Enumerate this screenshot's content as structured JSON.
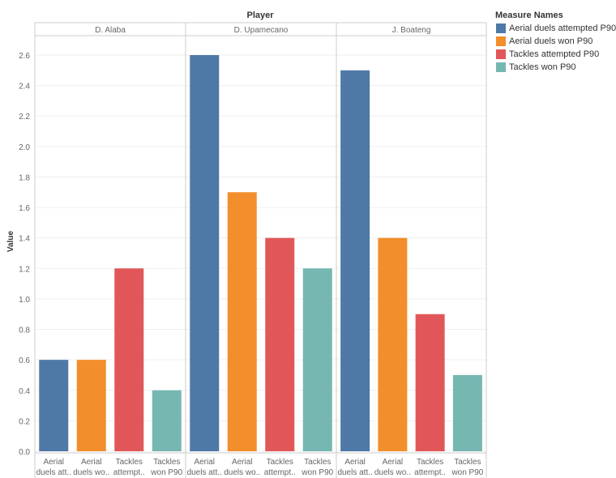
{
  "chart_data": {
    "type": "bar",
    "column_header": "Player",
    "ylabel": "Value",
    "ylim": [
      0,
      2.8
    ],
    "y_ticks": [
      "0.0",
      "0.2",
      "0.4",
      "0.6",
      "0.8",
      "1.0",
      "1.2",
      "1.4",
      "1.6",
      "1.8",
      "2.0",
      "2.2",
      "2.4",
      "2.6"
    ],
    "legend_title": "Measure Names",
    "legend_position": "top-right",
    "measures": [
      {
        "name": "Aerial duels attempted P90",
        "short_label": [
          "Aerial",
          "duels att.."
        ],
        "color": "#4e79a7"
      },
      {
        "name": "Aerial duels won P90",
        "short_label": [
          "Aerial",
          "duels wo.."
        ],
        "color": "#f28e2b"
      },
      {
        "name": "Tackles attempted P90",
        "short_label": [
          "Tackles",
          "attempt.."
        ],
        "color": "#e15759"
      },
      {
        "name": "Tackles won P90",
        "short_label": [
          "Tackles",
          "won P90"
        ],
        "color": "#76b7b2"
      }
    ],
    "panels": [
      {
        "player": "D. Alaba",
        "values": [
          0.6,
          0.6,
          1.2,
          0.4
        ]
      },
      {
        "player": "D. Upamecano",
        "values": [
          2.6,
          1.7,
          1.4,
          1.2
        ]
      },
      {
        "player": "J. Boateng",
        "values": [
          2.5,
          1.4,
          0.9,
          0.5
        ]
      }
    ],
    "grid": true
  }
}
